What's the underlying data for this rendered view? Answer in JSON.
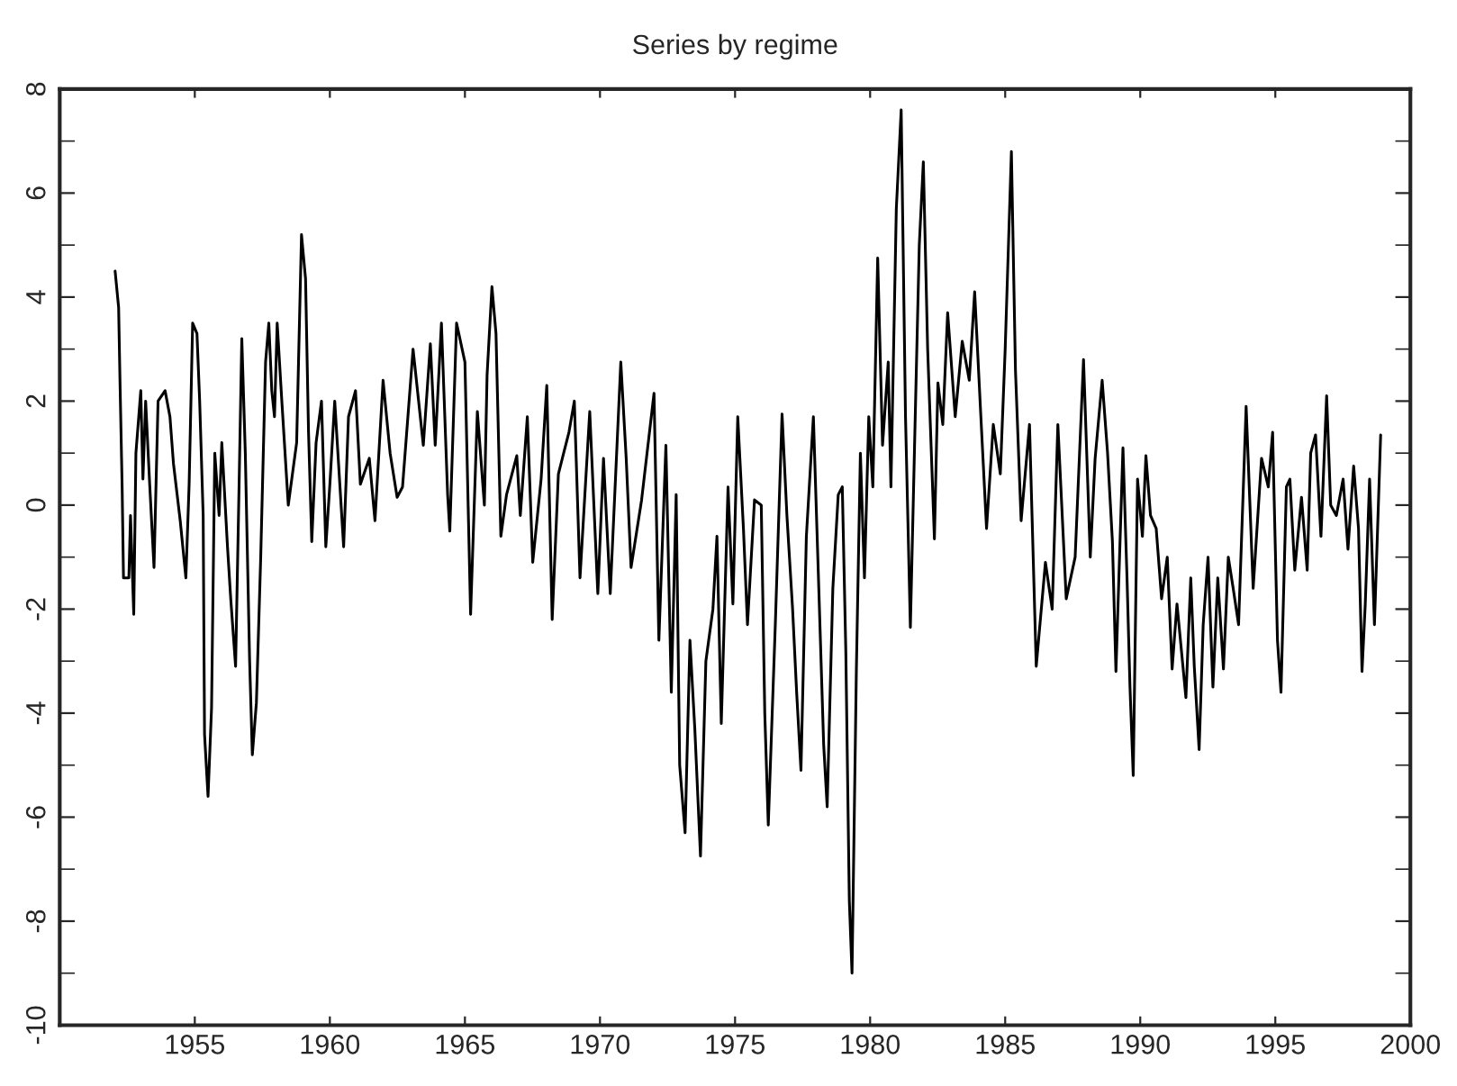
{
  "chart_data": {
    "type": "line",
    "title": "Series by regime",
    "xlim": [
      1950,
      2000
    ],
    "xticks": [
      1955,
      1960,
      1965,
      1970,
      1975,
      1980,
      1985,
      1990,
      1995,
      2000
    ],
    "ylim": [
      -10,
      8
    ],
    "yticks": [
      -10,
      -8,
      -6,
      -4,
      -2,
      0,
      2,
      4,
      6,
      8
    ],
    "grid": false,
    "legend": false,
    "series": [
      {
        "color": "#000000",
        "x": [
          1952.05,
          1952.18,
          1952.23,
          1952.31,
          1952.36,
          1952.56,
          1952.62,
          1952.74,
          1952.82,
          1953.0,
          1953.08,
          1953.18,
          1953.33,
          1953.49,
          1953.64,
          1953.9,
          1954.08,
          1954.21,
          1954.46,
          1954.67,
          1954.79,
          1954.92,
          1955.08,
          1955.18,
          1955.31,
          1955.36,
          1955.49,
          1955.62,
          1955.74,
          1955.9,
          1956.0,
          1956.21,
          1956.33,
          1956.51,
          1956.64,
          1956.74,
          1956.87,
          1957.03,
          1957.13,
          1957.28,
          1957.44,
          1957.62,
          1957.74,
          1957.85,
          1957.95,
          1958.05,
          1958.21,
          1958.46,
          1958.77,
          1958.95,
          1959.1,
          1959.21,
          1959.33,
          1959.49,
          1959.69,
          1959.85,
          1960.0,
          1960.18,
          1960.51,
          1960.69,
          1960.95,
          1961.13,
          1961.46,
          1961.67,
          1961.97,
          1962.23,
          1962.49,
          1962.69,
          1963.08,
          1963.46,
          1963.72,
          1963.9,
          1964.13,
          1964.36,
          1964.44,
          1964.69,
          1965.0,
          1965.21,
          1965.46,
          1965.72,
          1965.82,
          1966.0,
          1966.15,
          1966.33,
          1966.54,
          1966.92,
          1967.05,
          1967.31,
          1967.51,
          1967.82,
          1968.03,
          1968.23,
          1968.46,
          1968.85,
          1969.05,
          1969.26,
          1969.62,
          1969.92,
          1970.13,
          1970.38,
          1970.77,
          1970.97,
          1971.15,
          1971.54,
          1972.0,
          1972.18,
          1972.44,
          1972.64,
          1972.82,
          1972.95,
          1973.15,
          1973.33,
          1973.51,
          1973.72,
          1973.92,
          1974.18,
          1974.33,
          1974.49,
          1974.74,
          1974.92,
          1975.1,
          1975.31,
          1975.46,
          1975.72,
          1975.97,
          1976.1,
          1976.23,
          1976.49,
          1976.74,
          1976.92,
          1977.13,
          1977.28,
          1977.44,
          1977.64,
          1977.9,
          1978.1,
          1978.28,
          1978.41,
          1978.62,
          1978.82,
          1978.97,
          1979.1,
          1979.23,
          1979.33,
          1979.49,
          1979.64,
          1979.79,
          1979.95,
          1980.1,
          1980.28,
          1980.46,
          1980.67,
          1980.77,
          1980.97,
          1981.15,
          1981.31,
          1981.49,
          1981.67,
          1981.82,
          1981.97,
          1982.13,
          1982.38,
          1982.51,
          1982.69,
          1982.87,
          1983.15,
          1983.41,
          1983.67,
          1983.87,
          1984.1,
          1984.31,
          1984.56,
          1984.82,
          1985.0,
          1985.23,
          1985.38,
          1985.59,
          1985.9,
          1986.15,
          1986.49,
          1986.74,
          1986.95,
          1987.26,
          1987.59,
          1987.9,
          1988.15,
          1988.33,
          1988.59,
          1988.79,
          1988.97,
          1989.1,
          1989.36,
          1989.51,
          1989.62,
          1989.74,
          1989.9,
          1990.08,
          1990.21,
          1990.38,
          1990.59,
          1990.79,
          1991.0,
          1991.18,
          1991.36,
          1991.69,
          1991.87,
          1992.0,
          1992.18,
          1992.33,
          1992.51,
          1992.69,
          1992.87,
          1993.08,
          1993.26,
          1993.44,
          1993.64,
          1993.92,
          1994.18,
          1994.49,
          1994.74,
          1994.9,
          1995.08,
          1995.21,
          1995.41,
          1995.54,
          1995.72,
          1995.97,
          1996.18,
          1996.31,
          1996.49,
          1996.69,
          1996.9,
          1997.05,
          1997.26,
          1997.51,
          1997.69,
          1997.9,
          1998.08,
          1998.21,
          1998.33,
          1998.49,
          1998.67,
          1998.9
        ],
        "values": [
          4.5,
          3.8,
          2.4,
          0.35,
          -1.4,
          -1.4,
          -0.2,
          -2.1,
          1.0,
          2.2,
          0.5,
          2.0,
          0.4,
          -1.2,
          2.0,
          2.2,
          1.7,
          0.8,
          -0.3,
          -1.4,
          0.4,
          3.5,
          3.3,
          2.0,
          -0.2,
          -4.4,
          -5.6,
          -3.9,
          1.0,
          -0.2,
          1.2,
          -0.8,
          -1.8,
          -3.1,
          0.4,
          3.2,
          1.0,
          -3.0,
          -4.8,
          -3.8,
          -1.0,
          2.75,
          3.5,
          2.2,
          1.7,
          3.5,
          2.1,
          0.0,
          1.2,
          5.2,
          4.35,
          1.4,
          -0.7,
          1.2,
          2.0,
          -0.8,
          0.4,
          2.0,
          -0.8,
          1.7,
          2.2,
          0.4,
          0.9,
          -0.3,
          2.4,
          1.0,
          0.15,
          0.35,
          3.0,
          1.15,
          3.1,
          1.15,
          3.5,
          0.2,
          -0.5,
          3.5,
          2.75,
          -2.1,
          1.8,
          0.0,
          2.5,
          4.2,
          3.3,
          -0.6,
          0.2,
          0.95,
          -0.2,
          1.7,
          -1.1,
          0.5,
          2.3,
          -2.2,
          0.6,
          1.4,
          2.0,
          -1.4,
          1.8,
          -1.7,
          0.9,
          -1.7,
          2.75,
          0.9,
          -1.2,
          0.1,
          2.15,
          -2.6,
          1.15,
          -3.6,
          0.2,
          -5.0,
          -6.3,
          -2.6,
          -4.3,
          -6.75,
          -3.0,
          -2.0,
          -0.6,
          -4.2,
          0.35,
          -1.9,
          1.7,
          -0.45,
          -2.3,
          0.1,
          0.0,
          -4.0,
          -6.15,
          -2.3,
          1.75,
          -0.2,
          -2.0,
          -3.6,
          -5.1,
          -0.6,
          1.7,
          -1.6,
          -4.6,
          -5.8,
          -1.6,
          0.2,
          0.35,
          -2.8,
          -7.6,
          -9.0,
          -3.2,
          1.0,
          -1.4,
          1.7,
          0.35,
          4.75,
          1.15,
          2.75,
          0.35,
          5.7,
          7.6,
          1.7,
          -2.35,
          1.7,
          5.0,
          6.6,
          3.0,
          -0.65,
          2.35,
          1.55,
          3.7,
          1.7,
          3.15,
          2.4,
          4.1,
          1.7,
          -0.45,
          1.55,
          0.6,
          3.0,
          6.8,
          2.6,
          -0.3,
          1.55,
          -3.1,
          -1.1,
          -2.0,
          1.55,
          -1.8,
          -1.0,
          2.8,
          -1.0,
          0.9,
          2.4,
          1.0,
          -0.7,
          -3.2,
          1.1,
          -1.4,
          -3.5,
          -5.2,
          0.5,
          -0.6,
          0.95,
          -0.2,
          -0.45,
          -1.8,
          -1.0,
          -3.15,
          -1.9,
          -3.7,
          -1.4,
          -3.1,
          -4.7,
          -2.3,
          -1.0,
          -3.5,
          -1.4,
          -3.15,
          -1.0,
          -1.6,
          -2.3,
          1.9,
          -1.6,
          0.9,
          0.35,
          1.4,
          -2.6,
          -3.6,
          0.35,
          0.5,
          -1.25,
          0.15,
          -1.25,
          1.0,
          1.35,
          -0.6,
          2.1,
          0.0,
          -0.2,
          0.5,
          -0.85,
          0.75,
          -0.45,
          -3.2,
          -1.9,
          0.5,
          -2.3,
          1.35
        ]
      }
    ]
  }
}
